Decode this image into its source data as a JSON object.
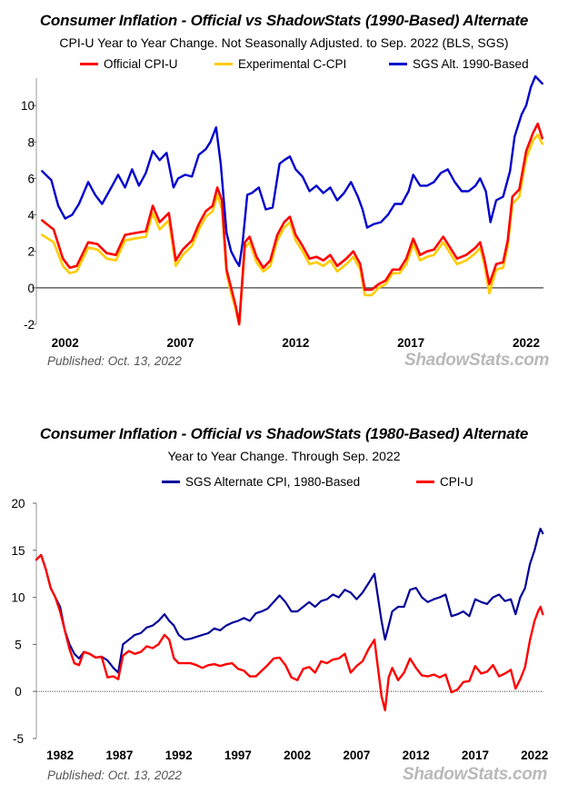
{
  "chart_data": [
    {
      "type": "line",
      "title": "Consumer Inflation - Official vs ShadowStats (1990-Based) Alternate",
      "subtitle": "CPI-U Year to Year Change. Not Seasonally Adjusted. to Sep. 2022  (BLS, SGS)",
      "xlabel": "",
      "ylabel": "",
      "xlim": [
        2000.75,
        2022.75
      ],
      "ylim": [
        -2,
        11.5
      ],
      "y_ticks": [
        -2,
        0,
        2,
        4,
        6,
        8,
        10
      ],
      "y_tick_labels": [
        "-2",
        "0",
        "2",
        "4",
        "6",
        "8",
        "10"
      ],
      "x_ticks": [
        2002,
        2007,
        2012,
        2017,
        2022
      ],
      "x_tick_labels": [
        "2002",
        "2007",
        "2012",
        "2017",
        "2022"
      ],
      "published": "Published: Oct. 13, 2022",
      "watermark": "ShadowStats.com",
      "series": [
        {
          "name": "Official CPI-U",
          "color": "#ff0000",
          "x": [
            2001.0,
            2001.5,
            2001.9,
            2002.2,
            2002.5,
            2003.0,
            2003.4,
            2003.8,
            2004.2,
            2004.6,
            2005.0,
            2005.5,
            2005.8,
            2006.1,
            2006.5,
            2006.8,
            2007.1,
            2007.5,
            2007.8,
            2008.1,
            2008.4,
            2008.6,
            2008.8,
            2009.0,
            2009.2,
            2009.4,
            2009.55,
            2009.8,
            2010.0,
            2010.3,
            2010.6,
            2010.9,
            2011.2,
            2011.5,
            2011.75,
            2012.0,
            2012.3,
            2012.6,
            2012.9,
            2013.2,
            2013.5,
            2013.8,
            2014.2,
            2014.5,
            2014.8,
            2015.0,
            2015.3,
            2015.6,
            2015.9,
            2016.2,
            2016.5,
            2016.8,
            2017.1,
            2017.4,
            2017.7,
            2018.0,
            2018.4,
            2018.7,
            2019.0,
            2019.4,
            2019.8,
            2020.0,
            2020.2,
            2020.4,
            2020.7,
            2021.0,
            2021.2,
            2021.4,
            2021.7,
            2022.0,
            2022.3,
            2022.5,
            2022.7
          ],
          "values": [
            3.7,
            3.2,
            1.6,
            1.1,
            1.2,
            2.5,
            2.4,
            1.9,
            1.8,
            2.9,
            3.0,
            3.1,
            4.5,
            3.6,
            4.1,
            1.5,
            2.1,
            2.6,
            3.5,
            4.2,
            4.5,
            5.5,
            4.8,
            1.0,
            0.0,
            -1.0,
            -2.0,
            2.5,
            2.8,
            1.7,
            1.1,
            1.5,
            2.9,
            3.6,
            3.9,
            2.9,
            2.3,
            1.6,
            1.7,
            1.5,
            1.8,
            1.2,
            1.6,
            2.0,
            1.3,
            -0.1,
            -0.1,
            0.2,
            0.4,
            1.0,
            1.0,
            1.6,
            2.7,
            1.8,
            2.0,
            2.1,
            2.8,
            2.2,
            1.6,
            1.8,
            2.2,
            2.5,
            1.5,
            0.2,
            1.3,
            1.4,
            2.6,
            5.0,
            5.4,
            7.5,
            8.5,
            9.0,
            8.2
          ]
        },
        {
          "name": "Experimental C-CPI",
          "color": "#ffcc00",
          "x": [
            2001.0,
            2001.5,
            2001.9,
            2002.2,
            2002.5,
            2003.0,
            2003.4,
            2003.8,
            2004.2,
            2004.6,
            2005.0,
            2005.5,
            2005.8,
            2006.1,
            2006.5,
            2006.8,
            2007.1,
            2007.5,
            2007.8,
            2008.1,
            2008.4,
            2008.6,
            2008.8,
            2009.0,
            2009.2,
            2009.4,
            2009.55,
            2009.8,
            2010.0,
            2010.3,
            2010.6,
            2010.9,
            2011.2,
            2011.5,
            2011.75,
            2012.0,
            2012.3,
            2012.6,
            2012.9,
            2013.2,
            2013.5,
            2013.8,
            2014.2,
            2014.5,
            2014.8,
            2015.0,
            2015.3,
            2015.6,
            2015.9,
            2016.2,
            2016.5,
            2016.8,
            2017.1,
            2017.4,
            2017.7,
            2018.0,
            2018.4,
            2018.7,
            2019.0,
            2019.4,
            2019.8,
            2020.0,
            2020.2,
            2020.4,
            2020.7,
            2021.0,
            2021.2,
            2021.4,
            2021.7,
            2022.0,
            2022.3,
            2022.5,
            2022.7
          ],
          "values": [
            2.9,
            2.5,
            1.2,
            0.8,
            0.9,
            2.2,
            2.1,
            1.6,
            1.5,
            2.6,
            2.7,
            2.8,
            4.1,
            3.2,
            3.7,
            1.2,
            1.8,
            2.3,
            3.2,
            3.9,
            4.2,
            5.1,
            4.3,
            0.8,
            -0.3,
            -1.2,
            -2.0,
            2.2,
            2.5,
            1.4,
            0.9,
            1.2,
            2.6,
            3.3,
            3.6,
            2.6,
            2.0,
            1.3,
            1.4,
            1.2,
            1.5,
            0.9,
            1.3,
            1.7,
            1.0,
            -0.4,
            -0.4,
            0.0,
            0.2,
            0.8,
            0.8,
            1.3,
            2.4,
            1.5,
            1.7,
            1.8,
            2.5,
            1.9,
            1.3,
            1.5,
            1.9,
            2.2,
            1.2,
            -0.3,
            1.0,
            1.1,
            2.3,
            4.6,
            5.0,
            7.1,
            8.1,
            8.4,
            7.9
          ]
        },
        {
          "name": "SGS  Alt. 1990-Based",
          "color": "#0000cc",
          "x": [
            2001.0,
            2001.4,
            2001.7,
            2002.0,
            2002.3,
            2002.6,
            2003.0,
            2003.3,
            2003.6,
            2004.0,
            2004.3,
            2004.6,
            2004.9,
            2005.2,
            2005.5,
            2005.8,
            2006.1,
            2006.4,
            2006.7,
            2006.9,
            2007.2,
            2007.5,
            2007.8,
            2008.1,
            2008.3,
            2008.55,
            2008.75,
            2009.0,
            2009.2,
            2009.4,
            2009.55,
            2009.7,
            2009.9,
            2010.1,
            2010.4,
            2010.7,
            2011.0,
            2011.3,
            2011.5,
            2011.75,
            2012.0,
            2012.3,
            2012.6,
            2012.9,
            2013.2,
            2013.5,
            2013.8,
            2014.1,
            2014.4,
            2014.7,
            2014.9,
            2015.1,
            2015.4,
            2015.7,
            2016.0,
            2016.3,
            2016.6,
            2016.9,
            2017.1,
            2017.4,
            2017.7,
            2018.0,
            2018.3,
            2018.6,
            2018.9,
            2019.2,
            2019.5,
            2019.8,
            2020.0,
            2020.25,
            2020.45,
            2020.7,
            2021.0,
            2021.3,
            2021.5,
            2021.8,
            2022.0,
            2022.2,
            2022.4,
            2022.55,
            2022.7
          ],
          "values": [
            6.4,
            5.9,
            4.5,
            3.8,
            4.0,
            4.6,
            5.8,
            5.1,
            4.6,
            5.5,
            6.2,
            5.5,
            6.5,
            5.6,
            6.3,
            7.5,
            7.0,
            7.4,
            5.5,
            6.0,
            6.2,
            6.1,
            7.3,
            7.6,
            8.0,
            8.8,
            6.8,
            3.0,
            2.0,
            1.5,
            1.2,
            2.5,
            5.1,
            5.2,
            5.5,
            4.3,
            4.4,
            6.8,
            7.0,
            7.2,
            6.5,
            6.1,
            5.3,
            5.6,
            5.2,
            5.5,
            4.8,
            5.2,
            5.8,
            5.0,
            4.3,
            3.3,
            3.5,
            3.6,
            4.0,
            4.6,
            4.6,
            5.3,
            6.2,
            5.6,
            5.6,
            5.8,
            6.3,
            6.5,
            5.8,
            5.3,
            5.3,
            5.6,
            6.0,
            5.3,
            3.6,
            4.8,
            5.0,
            6.4,
            8.3,
            9.5,
            10.0,
            11.0,
            11.6,
            11.4,
            11.2
          ]
        }
      ]
    },
    {
      "type": "line",
      "title": "Consumer Inflation - Official vs ShadowStats (1980-Based) Alternate",
      "subtitle": "Year to Year Change. Through Sep. 2022",
      "xlabel": "",
      "ylabel": "",
      "xlim": [
        1980,
        2022.75
      ],
      "ylim": [
        -5,
        20
      ],
      "y_ticks": [
        -5,
        0,
        5,
        10,
        15,
        20
      ],
      "y_tick_labels": [
        "-5",
        "0",
        "5",
        "10",
        "15",
        "20"
      ],
      "x_ticks": [
        1982,
        1987,
        1992,
        1997,
        2002,
        2007,
        2012,
        2017,
        2022
      ],
      "x_tick_labels": [
        "1982",
        "1987",
        "1992",
        "1997",
        "2002",
        "2007",
        "2012",
        "2017",
        "2022"
      ],
      "published": "Published: Oct. 13, 2022",
      "watermark": "ShadowStats.com",
      "series": [
        {
          "name": "SGS Alternate CPI, 1980-Based",
          "color": "#000099",
          "x": [
            1980.0,
            1980.4,
            1980.8,
            1981.2,
            1981.6,
            1982.0,
            1982.4,
            1982.8,
            1983.2,
            1983.6,
            1984.0,
            1984.5,
            1985.0,
            1985.5,
            1986.0,
            1986.5,
            1986.9,
            1987.3,
            1987.8,
            1988.3,
            1988.8,
            1989.3,
            1989.8,
            1990.3,
            1990.8,
            1991.2,
            1991.6,
            1992.0,
            1992.5,
            1993.0,
            1993.5,
            1994.0,
            1994.5,
            1995.0,
            1995.5,
            1996.0,
            1996.5,
            1997.0,
            1997.5,
            1998.0,
            1998.5,
            1999.0,
            1999.5,
            2000.0,
            2000.5,
            2001.0,
            2001.5,
            2002.0,
            2002.5,
            2003.0,
            2003.5,
            2004.0,
            2004.5,
            2005.0,
            2005.5,
            2006.0,
            2006.5,
            2007.0,
            2007.5,
            2008.0,
            2008.5,
            2008.8,
            2009.1,
            2009.4,
            2009.7,
            2010.0,
            2010.5,
            2011.0,
            2011.5,
            2012.0,
            2012.5,
            2013.0,
            2013.5,
            2014.0,
            2014.5,
            2015.0,
            2015.5,
            2016.0,
            2016.5,
            2017.0,
            2017.5,
            2018.0,
            2018.5,
            2019.0,
            2019.5,
            2020.0,
            2020.4,
            2020.8,
            2021.2,
            2021.6,
            2022.0,
            2022.3,
            2022.5,
            2022.7
          ],
          "values": [
            14.0,
            14.5,
            13.0,
            11.0,
            10.0,
            9.0,
            6.5,
            5.0,
            4.0,
            3.5,
            4.2,
            4.0,
            3.6,
            3.7,
            3.3,
            2.5,
            2.0,
            5.0,
            5.5,
            6.0,
            6.2,
            6.8,
            7.0,
            7.5,
            8.2,
            7.5,
            7.0,
            6.0,
            5.5,
            5.6,
            5.8,
            6.0,
            6.2,
            6.7,
            6.5,
            7.0,
            7.3,
            7.5,
            7.8,
            7.5,
            8.3,
            8.5,
            8.8,
            9.5,
            10.2,
            9.5,
            8.5,
            8.5,
            9.0,
            9.5,
            9.0,
            9.6,
            9.8,
            10.3,
            10.0,
            10.8,
            10.5,
            9.8,
            10.5,
            11.5,
            12.5,
            10.0,
            7.5,
            5.5,
            7.0,
            8.5,
            9.0,
            9.0,
            10.8,
            11.0,
            10.0,
            9.5,
            9.8,
            10.0,
            10.3,
            8.0,
            8.2,
            8.5,
            8.0,
            9.8,
            9.5,
            9.3,
            10.0,
            10.3,
            9.6,
            9.8,
            8.2,
            10.0,
            11.0,
            13.5,
            15.0,
            16.5,
            17.3,
            16.8
          ]
        },
        {
          "name": "CPI-U",
          "color": "#ff0000",
          "x": [
            1980.0,
            1980.4,
            1980.8,
            1981.2,
            1981.6,
            1982.0,
            1982.4,
            1982.8,
            1983.2,
            1983.6,
            1984.0,
            1984.5,
            1985.0,
            1985.5,
            1986.0,
            1986.5,
            1986.9,
            1987.3,
            1987.8,
            1988.3,
            1988.8,
            1989.3,
            1989.8,
            1990.3,
            1990.8,
            1991.2,
            1991.6,
            1992.0,
            1992.5,
            1993.0,
            1993.5,
            1994.0,
            1994.5,
            1995.0,
            1995.5,
            1996.0,
            1996.5,
            1997.0,
            1997.5,
            1998.0,
            1998.5,
            1999.0,
            1999.5,
            2000.0,
            2000.5,
            2001.0,
            2001.5,
            2002.0,
            2002.5,
            2003.0,
            2003.5,
            2004.0,
            2004.5,
            2005.0,
            2005.5,
            2006.0,
            2006.5,
            2007.0,
            2007.5,
            2008.0,
            2008.5,
            2008.8,
            2009.1,
            2009.4,
            2009.7,
            2010.0,
            2010.5,
            2011.0,
            2011.5,
            2012.0,
            2012.5,
            2013.0,
            2013.5,
            2014.0,
            2014.5,
            2015.0,
            2015.5,
            2016.0,
            2016.5,
            2017.0,
            2017.5,
            2018.0,
            2018.5,
            2019.0,
            2019.5,
            2020.0,
            2020.4,
            2020.8,
            2021.2,
            2021.6,
            2022.0,
            2022.3,
            2022.5,
            2022.7
          ],
          "values": [
            14.0,
            14.5,
            13.0,
            11.0,
            10.0,
            8.5,
            6.5,
            4.5,
            3.0,
            2.8,
            4.2,
            4.0,
            3.6,
            3.7,
            1.5,
            1.6,
            1.3,
            3.8,
            4.3,
            4.0,
            4.2,
            4.8,
            4.6,
            5.0,
            6.0,
            5.5,
            3.5,
            3.0,
            3.0,
            3.0,
            2.8,
            2.5,
            2.8,
            2.9,
            2.7,
            2.9,
            3.0,
            2.4,
            2.2,
            1.6,
            1.6,
            2.2,
            2.8,
            3.5,
            3.6,
            2.8,
            1.5,
            1.2,
            2.4,
            2.6,
            2.0,
            3.2,
            3.0,
            3.4,
            3.5,
            4.0,
            2.0,
            2.7,
            3.2,
            4.5,
            5.5,
            2.5,
            -0.5,
            -2.0,
            1.5,
            2.5,
            1.2,
            2.0,
            3.5,
            2.5,
            1.7,
            1.6,
            1.8,
            1.5,
            1.8,
            -0.1,
            0.2,
            1.0,
            1.1,
            2.7,
            1.9,
            2.1,
            2.8,
            1.6,
            1.9,
            2.3,
            0.3,
            1.3,
            2.6,
            5.4,
            7.5,
            8.5,
            9.0,
            8.2
          ]
        }
      ]
    }
  ]
}
